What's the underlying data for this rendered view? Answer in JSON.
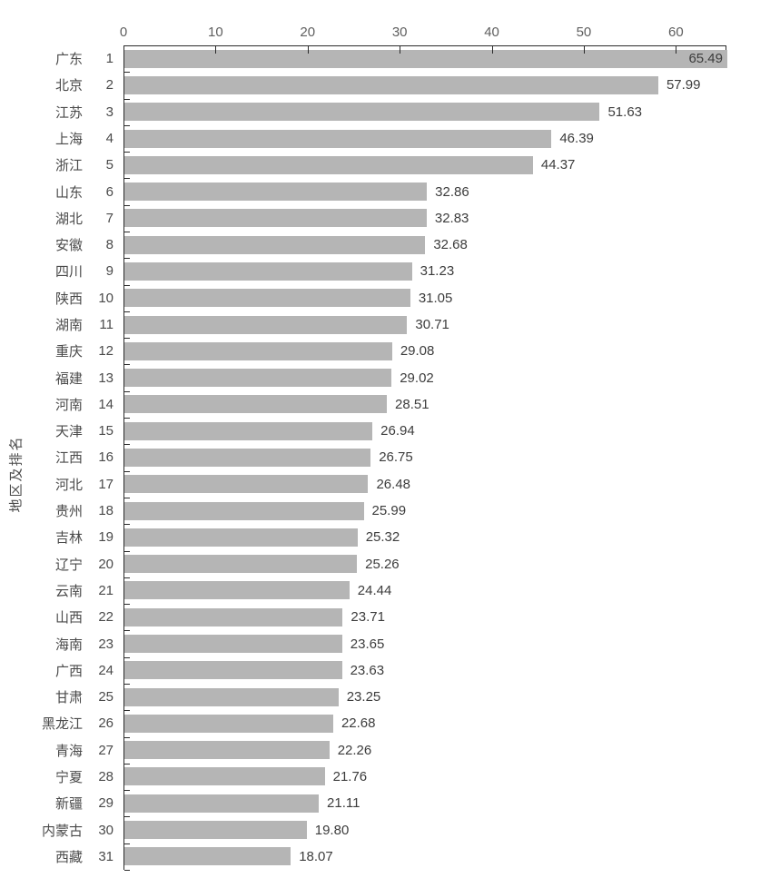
{
  "chart_data": {
    "type": "bar",
    "orientation": "horizontal",
    "title": "",
    "xlabel": "",
    "ylabel": "地区及排名",
    "xlim": [
      0,
      65.49
    ],
    "x_ticks": [
      0,
      10,
      20,
      30,
      40,
      50,
      60
    ],
    "grid": false,
    "legend": "none",
    "bar_color": "#b5b5b5",
    "axis_color": "#2b2b2b",
    "tick_label_color": "#5f5f5f",
    "text_color": "#4a4a4a",
    "rows": [
      {
        "province": "广东",
        "rank": "1",
        "value": 65.49,
        "label": "65.49"
      },
      {
        "province": "北京",
        "rank": "2",
        "value": 57.99,
        "label": "57.99"
      },
      {
        "province": "江苏",
        "rank": "3",
        "value": 51.63,
        "label": "51.63"
      },
      {
        "province": "上海",
        "rank": "4",
        "value": 46.39,
        "label": "46.39"
      },
      {
        "province": "浙江",
        "rank": "5",
        "value": 44.37,
        "label": "44.37"
      },
      {
        "province": "山东",
        "rank": "6",
        "value": 32.86,
        "label": "32.86"
      },
      {
        "province": "湖北",
        "rank": "7",
        "value": 32.83,
        "label": "32.83"
      },
      {
        "province": "安徽",
        "rank": "8",
        "value": 32.68,
        "label": "32.68"
      },
      {
        "province": "四川",
        "rank": "9",
        "value": 31.23,
        "label": "31.23"
      },
      {
        "province": "陕西",
        "rank": "10",
        "value": 31.05,
        "label": "31.05"
      },
      {
        "province": "湖南",
        "rank": "11",
        "value": 30.71,
        "label": "30.71"
      },
      {
        "province": "重庆",
        "rank": "12",
        "value": 29.08,
        "label": "29.08"
      },
      {
        "province": "福建",
        "rank": "13",
        "value": 29.02,
        "label": "29.02"
      },
      {
        "province": "河南",
        "rank": "14",
        "value": 28.51,
        "label": "28.51"
      },
      {
        "province": "天津",
        "rank": "15",
        "value": 26.94,
        "label": "26.94"
      },
      {
        "province": "江西",
        "rank": "16",
        "value": 26.75,
        "label": "26.75"
      },
      {
        "province": "河北",
        "rank": "17",
        "value": 26.48,
        "label": "26.48"
      },
      {
        "province": "贵州",
        "rank": "18",
        "value": 25.99,
        "label": "25.99"
      },
      {
        "province": "吉林",
        "rank": "19",
        "value": 25.32,
        "label": "25.32"
      },
      {
        "province": "辽宁",
        "rank": "20",
        "value": 25.26,
        "label": "25.26"
      },
      {
        "province": "云南",
        "rank": "21",
        "value": 24.44,
        "label": "24.44"
      },
      {
        "province": "山西",
        "rank": "22",
        "value": 23.71,
        "label": "23.71"
      },
      {
        "province": "海南",
        "rank": "23",
        "value": 23.65,
        "label": "23.65"
      },
      {
        "province": "广西",
        "rank": "24",
        "value": 23.63,
        "label": "23.63"
      },
      {
        "province": "甘肃",
        "rank": "25",
        "value": 23.25,
        "label": "23.25"
      },
      {
        "province": "黑龙江",
        "rank": "26",
        "value": 22.68,
        "label": "22.68"
      },
      {
        "province": "青海",
        "rank": "27",
        "value": 22.26,
        "label": "22.26"
      },
      {
        "province": "宁夏",
        "rank": "28",
        "value": 21.76,
        "label": "21.76"
      },
      {
        "province": "新疆",
        "rank": "29",
        "value": 21.11,
        "label": "21.11"
      },
      {
        "province": "内蒙古",
        "rank": "30",
        "value": 19.8,
        "label": "19.80"
      },
      {
        "province": "西藏",
        "rank": "31",
        "value": 18.07,
        "label": "18.07"
      }
    ]
  }
}
